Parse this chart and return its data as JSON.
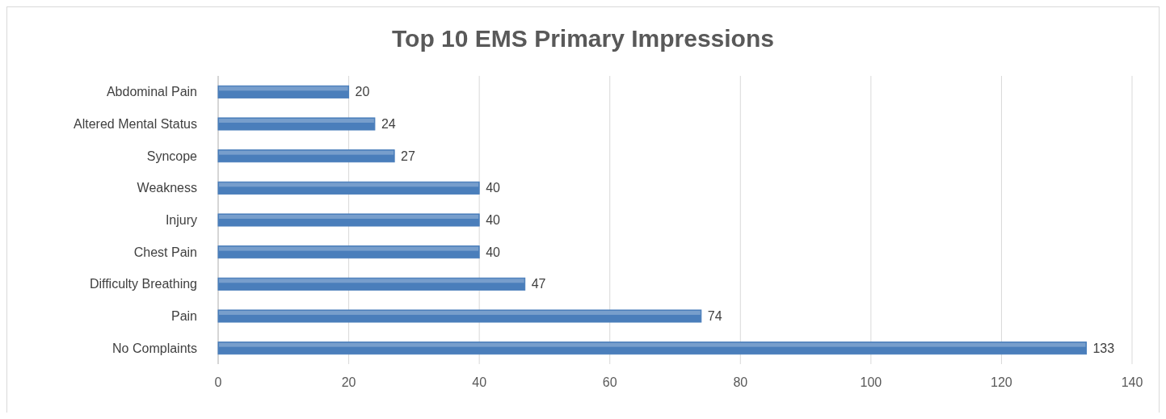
{
  "chart_data": {
    "type": "bar",
    "orientation": "horizontal",
    "title": "Top 10 EMS Primary Impressions",
    "categories": [
      "Abdominal Pain",
      "Altered Mental Status",
      "Syncope",
      "Weakness",
      "Injury",
      "Chest Pain",
      "Difficulty Breathing",
      "Pain",
      "No Complaints"
    ],
    "values": [
      20,
      24,
      27,
      40,
      40,
      40,
      47,
      74,
      133
    ],
    "color": "#4a7ebb",
    "xlim": [
      0,
      140
    ],
    "xticks": [
      0,
      20,
      40,
      60,
      80,
      100,
      120,
      140
    ],
    "grid": "x",
    "data_labels": true
  }
}
